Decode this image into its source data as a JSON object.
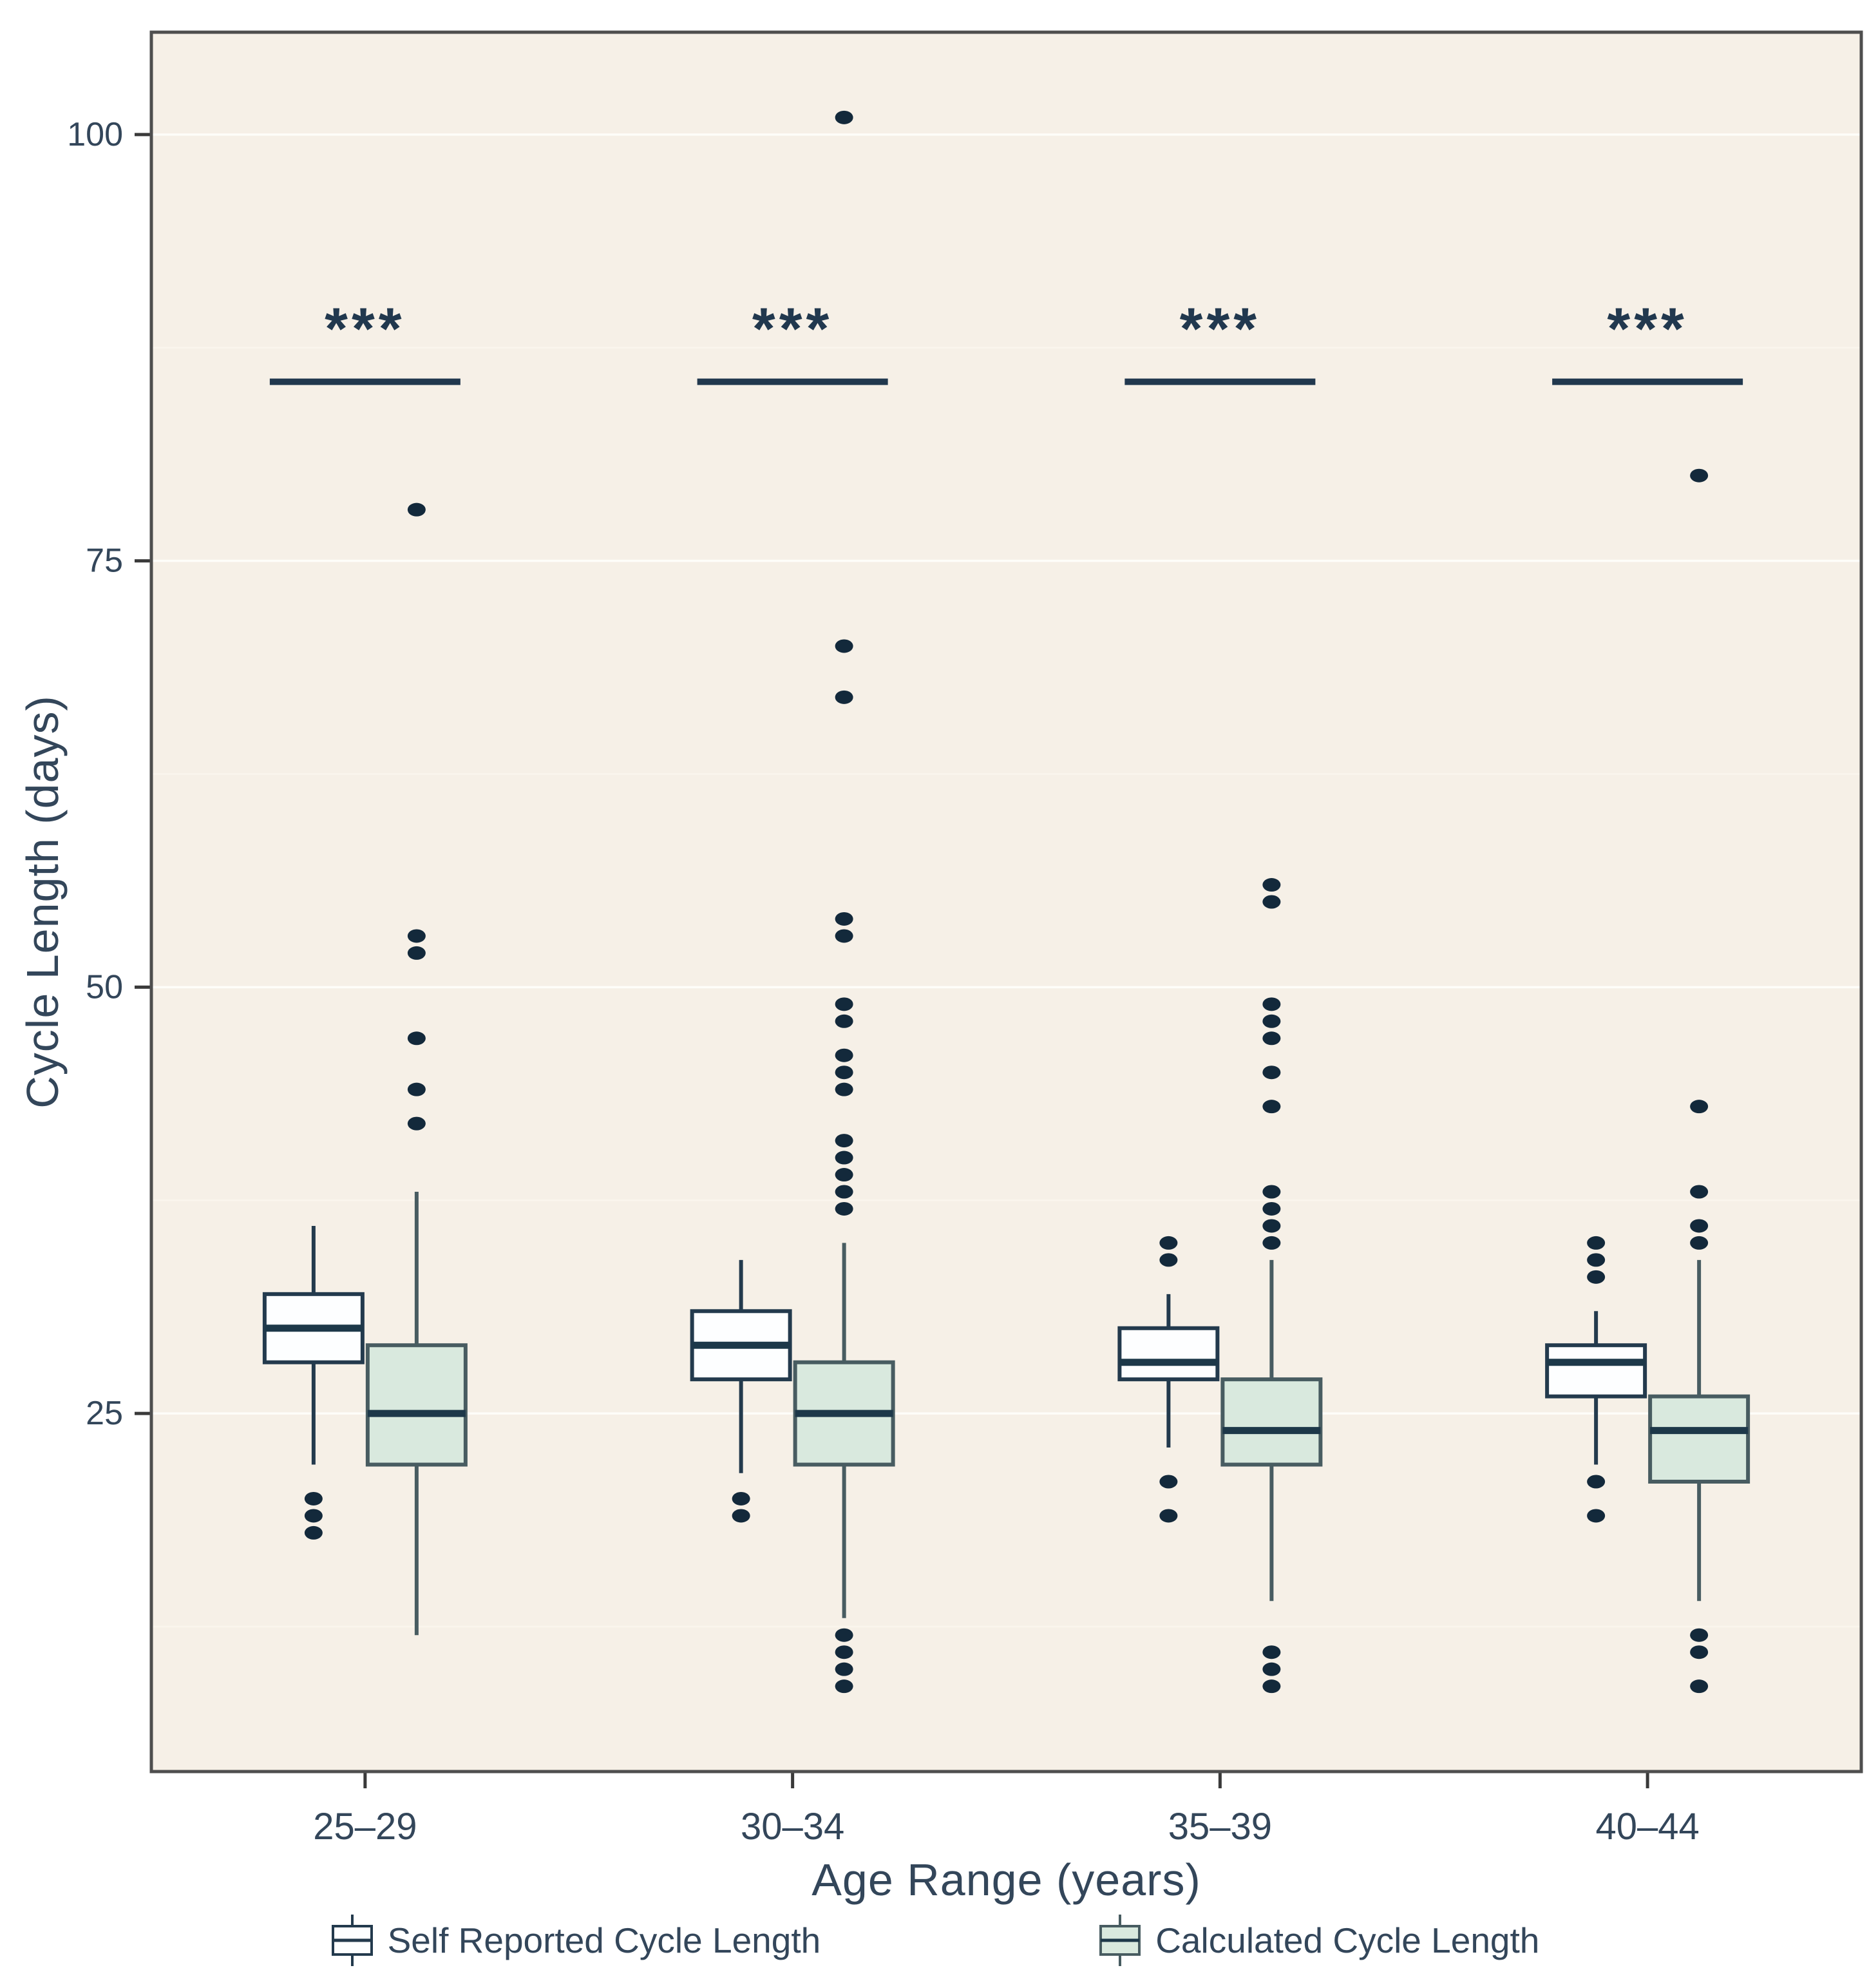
{
  "style": {
    "page_background": "#ffffff",
    "panel_background": "#f6f0e7",
    "panel_border": "#4e4e4e",
    "grid_major": "#fefdf9",
    "grid_minor": "#faf5ed",
    "text_color": "#33465a",
    "tick_mark_color": "#3a3a3a",
    "outlier_dot_color": "#13293b",
    "median_color": "#1d3849",
    "significance_color": "#21384e"
  },
  "chart_data": {
    "type": "boxplot",
    "title": "",
    "xlabel": "Age Range (years)",
    "ylabel": "Cycle Length (days)",
    "ylim": [
      4,
      106
    ],
    "yticks": [
      25,
      50,
      75,
      100
    ],
    "ytick_labels": [
      "25",
      "50",
      "75",
      "100"
    ],
    "categories": [
      "25–29",
      "30–34",
      "35–39",
      "40–44"
    ],
    "grid": "on",
    "legend_position": "bottom",
    "significance": {
      "label": "***",
      "bar_y": 85.5,
      "star_y": 89
    },
    "annotations": [
      {
        "category": "25–29",
        "label": "***"
      },
      {
        "category": "30–34",
        "label": "***"
      },
      {
        "category": "35–39",
        "label": "***"
      },
      {
        "category": "40–44",
        "label": "***"
      }
    ],
    "series": [
      {
        "name": "Self Reported Cycle Length",
        "fill": "#fdfeff",
        "stroke": "#233a4d",
        "boxes": [
          {
            "category": "25–29",
            "whisker_low": 22,
            "q1": 28,
            "median": 30,
            "q3": 32,
            "whisker_high": 36,
            "outliers_low": [
              20,
              19,
              18
            ],
            "outliers_high": []
          },
          {
            "category": "30–34",
            "whisker_low": 21.5,
            "q1": 27,
            "median": 29,
            "q3": 31,
            "whisker_high": 34,
            "outliers_low": [
              20,
              19
            ],
            "outliers_high": []
          },
          {
            "category": "35–39",
            "whisker_low": 23,
            "q1": 27,
            "median": 28,
            "q3": 30,
            "whisker_high": 32,
            "outliers_low": [
              21,
              19
            ],
            "outliers_high": [
              35,
              34
            ]
          },
          {
            "category": "40–44",
            "whisker_low": 22,
            "q1": 26,
            "median": 28,
            "q3": 29,
            "whisker_high": 31,
            "outliers_low": [
              21,
              19
            ],
            "outliers_high": [
              35,
              34,
              33
            ]
          }
        ]
      },
      {
        "name": "Calculated Cycle Length",
        "fill": "#d9e9de",
        "stroke": "#485c61",
        "boxes": [
          {
            "category": "25–29",
            "whisker_low": 12,
            "q1": 22,
            "median": 25,
            "q3": 29,
            "whisker_high": 38,
            "outliers_low": [],
            "outliers_high": [
              78,
              53,
              52,
              47,
              44,
              42
            ]
          },
          {
            "category": "30–34",
            "whisker_low": 13,
            "q1": 22,
            "median": 25,
            "q3": 28,
            "whisker_high": 35,
            "outliers_low": [
              12,
              11,
              10,
              9
            ],
            "outliers_high": [
              101,
              70,
              67,
              54,
              53,
              49,
              48,
              46,
              45,
              44,
              41,
              40,
              39,
              38,
              37
            ]
          },
          {
            "category": "35–39",
            "whisker_low": 14,
            "q1": 22,
            "median": 24,
            "q3": 27,
            "whisker_high": 34,
            "outliers_low": [
              11,
              10,
              9
            ],
            "outliers_high": [
              56,
              55,
              49,
              48,
              47,
              45,
              43,
              38,
              37,
              36,
              35
            ]
          },
          {
            "category": "40–44",
            "whisker_low": 14,
            "q1": 21,
            "median": 24,
            "q3": 26,
            "whisker_high": 34,
            "outliers_low": [
              12,
              11,
              9
            ],
            "outliers_high": [
              80,
              43,
              38,
              36,
              35
            ]
          }
        ]
      }
    ]
  }
}
